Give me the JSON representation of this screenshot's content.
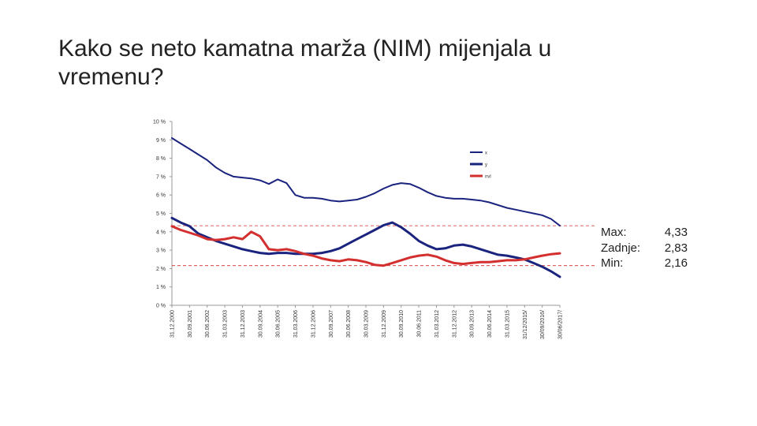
{
  "page": {
    "title": "Kako se neto kamatna marža (NIM) mijenjala u vremenu?"
  },
  "stats": {
    "items": [
      {
        "label": "Max:",
        "value": "4,33"
      },
      {
        "label": "Zadnje:",
        "value": "2,83"
      },
      {
        "label": "Min:",
        "value": "2,16"
      }
    ]
  },
  "chart_data": {
    "type": "line",
    "title": "",
    "xlabel": "",
    "ylabel": "",
    "ylim": [
      0,
      10
    ],
    "y_ticks": [
      "0 %",
      "1 %",
      "2 %",
      "3 %",
      "4 %",
      "5 %",
      "6 %",
      "7 %",
      "8 %",
      "9 %",
      "10 %"
    ],
    "categories": [
      "31.12.2000",
      "30.09.2001",
      "30.06.2002",
      "31.03.2003",
      "31.12.2003",
      "30.09.2004",
      "30.06.2005",
      "31.03.2006",
      "31.12.2006",
      "30.09.2007",
      "30.06.2008",
      "30.03.2009",
      "31.12.2009",
      "30.09.2010",
      "30.06.2011",
      "31.03.2012",
      "31.12.2012",
      "30.09.2013",
      "30.06.2014",
      "31.03.2015",
      "31/12/2015/",
      "30/09/2016/",
      "30/06/2017/"
    ],
    "legend_position": "top-right",
    "grid": false,
    "colors": {
      "x": "#1a237e",
      "y": "#1a237e",
      "nvl": "#d32f2f",
      "reference": "#d32f2f"
    },
    "reference_lines": [
      {
        "value": 4.33,
        "style": "dashed"
      },
      {
        "value": 2.16,
        "style": "dashed"
      }
    ],
    "series": [
      {
        "name": "x",
        "x": [
          0,
          0.5,
          1,
          1.5,
          2,
          2.5,
          3,
          3.5,
          4,
          4.5,
          5,
          5.5,
          6,
          6.5,
          7,
          7.5,
          8,
          8.5,
          9,
          9.5,
          10,
          10.5,
          11,
          11.5,
          12,
          12.5,
          13,
          13.5,
          14,
          14.5,
          15,
          15.5,
          16,
          16.5,
          17,
          17.5,
          18,
          18.5,
          19,
          19.5,
          20,
          20.5,
          21,
          21.5,
          22
        ],
        "values": [
          9.1,
          8.8,
          8.5,
          8.2,
          7.9,
          7.5,
          7.2,
          7.0,
          6.95,
          6.9,
          6.8,
          6.6,
          6.85,
          6.65,
          6.0,
          5.85,
          5.85,
          5.8,
          5.7,
          5.65,
          5.7,
          5.75,
          5.9,
          6.1,
          6.35,
          6.55,
          6.65,
          6.6,
          6.4,
          6.15,
          5.95,
          5.85,
          5.8,
          5.8,
          5.75,
          5.7,
          5.6,
          5.45,
          5.3,
          5.2,
          5.1,
          5.0,
          4.9,
          4.7,
          4.33
        ],
        "width": 2
      },
      {
        "name": "y",
        "x": [
          0,
          0.5,
          1,
          1.5,
          2,
          2.5,
          3,
          3.5,
          4,
          4.5,
          5,
          5.5,
          6,
          6.5,
          7,
          7.5,
          8,
          8.5,
          9,
          9.5,
          10,
          10.5,
          11,
          11.5,
          12,
          12.5,
          13,
          13.5,
          14,
          14.5,
          15,
          15.5,
          16,
          16.5,
          17,
          17.5,
          18,
          18.5,
          19,
          19.5,
          20,
          20.5,
          21,
          21.5,
          22
        ],
        "values": [
          4.75,
          4.5,
          4.3,
          3.9,
          3.7,
          3.5,
          3.35,
          3.2,
          3.05,
          2.95,
          2.85,
          2.8,
          2.85,
          2.85,
          2.8,
          2.8,
          2.8,
          2.85,
          2.95,
          3.1,
          3.35,
          3.6,
          3.85,
          4.1,
          4.35,
          4.5,
          4.25,
          3.9,
          3.5,
          3.25,
          3.05,
          3.1,
          3.25,
          3.3,
          3.2,
          3.05,
          2.9,
          2.75,
          2.7,
          2.6,
          2.5,
          2.3,
          2.1,
          1.85,
          1.55
        ],
        "width": 3
      },
      {
        "name": "nvl",
        "x": [
          0,
          0.5,
          1,
          1.5,
          2,
          2.5,
          3,
          3.5,
          4,
          4.5,
          5,
          5.5,
          6,
          6.5,
          7,
          7.5,
          8,
          8.5,
          9,
          9.5,
          10,
          10.5,
          11,
          11.5,
          12,
          12.5,
          13,
          13.5,
          14,
          14.5,
          15,
          15.5,
          16,
          16.5,
          17,
          17.5,
          18,
          18.5,
          19,
          19.5,
          20,
          20.5,
          21,
          21.5,
          22
        ],
        "values": [
          4.3,
          4.1,
          3.95,
          3.8,
          3.6,
          3.55,
          3.6,
          3.7,
          3.6,
          4.0,
          3.75,
          3.05,
          3.0,
          3.05,
          2.95,
          2.8,
          2.7,
          2.55,
          2.45,
          2.4,
          2.5,
          2.45,
          2.35,
          2.2,
          2.16,
          2.3,
          2.45,
          2.6,
          2.7,
          2.75,
          2.65,
          2.45,
          2.3,
          2.25,
          2.3,
          2.35,
          2.35,
          2.4,
          2.45,
          2.45,
          2.5,
          2.6,
          2.7,
          2.78,
          2.83
        ],
        "width": 3
      }
    ]
  }
}
